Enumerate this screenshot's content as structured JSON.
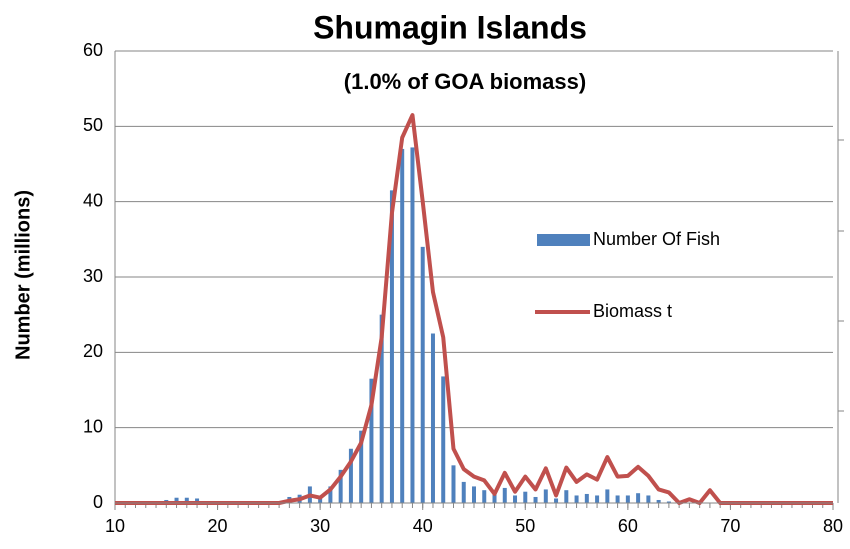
{
  "chart_data": {
    "type": "bar-line",
    "title": "Shumagin Islands",
    "subtitle": "(1.0% of GOA biomass)",
    "y_label": "Number (millions)",
    "x": [
      10,
      11,
      12,
      13,
      14,
      15,
      16,
      17,
      18,
      19,
      20,
      21,
      22,
      23,
      24,
      25,
      26,
      27,
      28,
      29,
      30,
      31,
      32,
      33,
      34,
      35,
      36,
      37,
      38,
      39,
      40,
      41,
      42,
      43,
      44,
      45,
      46,
      47,
      48,
      49,
      50,
      51,
      52,
      53,
      54,
      55,
      56,
      57,
      58,
      59,
      60,
      61,
      62,
      63,
      64,
      65,
      66,
      67,
      68,
      69,
      70,
      71,
      72,
      73,
      74,
      75,
      76,
      77,
      78,
      79,
      80
    ],
    "series": [
      {
        "name": "Number Of Fish",
        "color": "#4f81bd",
        "kind": "bar",
        "values": [
          0,
          0,
          0,
          0,
          0,
          0.4,
          0.7,
          0.7,
          0.6,
          0,
          0,
          0,
          0,
          0,
          0,
          0,
          0,
          0.8,
          1.1,
          2.2,
          1.0,
          2.2,
          4.4,
          7.2,
          9.6,
          16.5,
          25,
          41.5,
          47,
          47.2,
          34,
          22.5,
          16.8,
          5,
          2.8,
          2.2,
          1.7,
          1.5,
          2.0,
          1.0,
          1.5,
          0.8,
          1.8,
          0.6,
          1.7,
          1.0,
          1.2,
          1.0,
          1.8,
          1.0,
          1.0,
          1.3,
          1.0,
          0.4,
          0.2,
          0,
          0,
          0,
          0,
          0,
          0,
          0,
          0,
          0,
          0,
          0,
          0,
          0,
          0,
          0,
          0
        ]
      },
      {
        "name": "Biomass t",
        "color": "#c0504d",
        "kind": "line",
        "values": [
          0,
          0,
          0,
          0,
          0,
          0,
          0,
          0,
          0,
          0,
          0,
          0,
          0,
          0,
          0,
          0,
          0,
          0.3,
          0.5,
          1.0,
          0.7,
          1.8,
          3.5,
          5.5,
          8,
          13,
          22,
          38.5,
          48.5,
          51.5,
          40,
          28,
          22,
          7.2,
          4.5,
          3.5,
          3.0,
          1.2,
          4.0,
          1.5,
          3.5,
          1.8,
          4.6,
          1.0,
          4.7,
          2.8,
          3.8,
          3.1,
          6.1,
          3.5,
          3.6,
          4.8,
          3.6,
          1.8,
          1.4,
          0,
          0.5,
          0,
          1.7,
          0,
          0,
          0,
          0,
          0,
          0,
          0,
          0,
          0,
          0,
          0,
          0
        ]
      }
    ],
    "xlim": [
      10,
      80
    ],
    "xticks": [
      10,
      20,
      30,
      40,
      50,
      60,
      70,
      80
    ],
    "ylim": [
      0,
      60
    ],
    "yticks": [
      0,
      10,
      20,
      30,
      40,
      50,
      60
    ],
    "grid": true
  }
}
